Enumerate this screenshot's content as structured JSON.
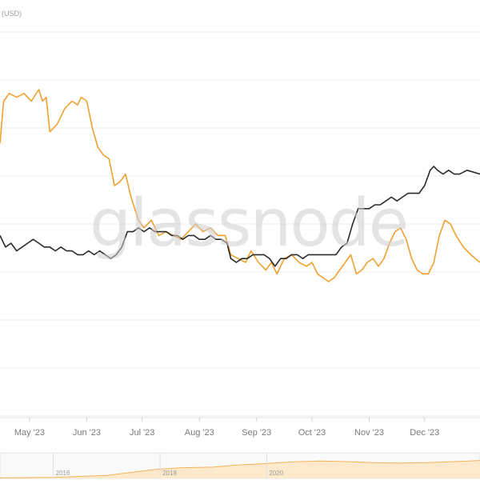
{
  "chart_data": {
    "type": "line",
    "unit_label": "(USD)",
    "watermark": "glassnode",
    "x_tick_labels": [
      "May '23",
      "Jun '23",
      "Jul '23",
      "Aug '23",
      "Sep '23",
      "Oct '23",
      "Nov '23",
      "Dec '23"
    ],
    "navigator_tick_labels": [
      "2016",
      "2018",
      "2020"
    ],
    "grid": true,
    "colors": {
      "series_orange": "#f0a030",
      "series_black": "#2b2b2b",
      "grid": "#ececec",
      "axis_text": "#7a7a7a",
      "navigator_fill": "#fde9cc",
      "navigator_line": "#f4b25a"
    },
    "x_range": [
      "2023-04-15",
      "2023-12-31"
    ],
    "series": [
      {
        "color": "#f0a030",
        "points": [
          [
            "2023-04-15",
            0.71
          ],
          [
            "2023-04-17",
            0.82
          ],
          [
            "2023-04-20",
            0.84
          ],
          [
            "2023-04-24",
            0.83
          ],
          [
            "2023-04-28",
            0.84
          ],
          [
            "2023-05-02",
            0.82
          ],
          [
            "2023-05-06",
            0.85
          ],
          [
            "2023-05-08",
            0.82
          ],
          [
            "2023-05-10",
            0.83
          ],
          [
            "2023-05-12",
            0.74
          ],
          [
            "2023-05-16",
            0.76
          ],
          [
            "2023-05-20",
            0.8
          ],
          [
            "2023-05-24",
            0.82
          ],
          [
            "2023-05-27",
            0.81
          ],
          [
            "2023-05-29",
            0.83
          ],
          [
            "2023-06-01",
            0.82
          ],
          [
            "2023-06-04",
            0.75
          ],
          [
            "2023-06-07",
            0.7
          ],
          [
            "2023-06-10",
            0.68
          ],
          [
            "2023-06-13",
            0.67
          ],
          [
            "2023-06-16",
            0.6
          ],
          [
            "2023-06-19",
            0.61
          ],
          [
            "2023-06-22",
            0.63
          ],
          [
            "2023-06-25",
            0.57
          ],
          [
            "2023-06-29",
            0.51
          ],
          [
            "2023-07-02",
            0.49
          ],
          [
            "2023-07-06",
            0.51
          ],
          [
            "2023-07-10",
            0.47
          ],
          [
            "2023-07-14",
            0.48
          ],
          [
            "2023-07-18",
            0.47
          ],
          [
            "2023-07-22",
            0.46
          ],
          [
            "2023-07-26",
            0.48
          ],
          [
            "2023-07-30",
            0.5
          ],
          [
            "2023-08-03",
            0.48
          ],
          [
            "2023-08-07",
            0.49
          ],
          [
            "2023-08-11",
            0.47
          ],
          [
            "2023-08-15",
            0.47
          ],
          [
            "2023-08-18",
            0.42
          ],
          [
            "2023-08-22",
            0.41
          ],
          [
            "2023-08-26",
            0.4
          ],
          [
            "2023-08-29",
            0.43
          ],
          [
            "2023-09-02",
            0.4
          ],
          [
            "2023-09-06",
            0.38
          ],
          [
            "2023-09-09",
            0.4
          ],
          [
            "2023-09-12",
            0.37
          ],
          [
            "2023-09-16",
            0.41
          ],
          [
            "2023-09-20",
            0.42
          ],
          [
            "2023-09-24",
            0.4
          ],
          [
            "2023-09-28",
            0.39
          ],
          [
            "2023-10-01",
            0.4
          ],
          [
            "2023-10-04",
            0.37
          ],
          [
            "2023-10-07",
            0.36
          ],
          [
            "2023-10-10",
            0.35
          ],
          [
            "2023-10-13",
            0.36
          ],
          [
            "2023-10-16",
            0.38
          ],
          [
            "2023-10-19",
            0.4
          ],
          [
            "2023-10-22",
            0.42
          ],
          [
            "2023-10-25",
            0.37
          ],
          [
            "2023-10-28",
            0.38
          ],
          [
            "2023-10-31",
            0.4
          ],
          [
            "2023-11-03",
            0.41
          ],
          [
            "2023-11-06",
            0.39
          ],
          [
            "2023-11-09",
            0.41
          ],
          [
            "2023-11-12",
            0.45
          ],
          [
            "2023-11-15",
            0.48
          ],
          [
            "2023-11-18",
            0.49
          ],
          [
            "2023-11-21",
            0.46
          ],
          [
            "2023-11-24",
            0.41
          ],
          [
            "2023-11-27",
            0.38
          ],
          [
            "2023-11-30",
            0.37
          ],
          [
            "2023-12-03",
            0.37
          ],
          [
            "2023-12-06",
            0.4
          ],
          [
            "2023-12-09",
            0.47
          ],
          [
            "2023-12-12",
            0.51
          ],
          [
            "2023-12-15",
            0.5
          ],
          [
            "2023-12-18",
            0.47
          ],
          [
            "2023-12-22",
            0.44
          ],
          [
            "2023-12-26",
            0.42
          ],
          [
            "2023-12-31",
            0.4
          ]
        ]
      },
      {
        "color": "#2b2b2b",
        "points": [
          [
            "2023-04-15",
            0.47
          ],
          [
            "2023-04-18",
            0.44
          ],
          [
            "2023-04-21",
            0.45
          ],
          [
            "2023-04-24",
            0.43
          ],
          [
            "2023-04-27",
            0.44
          ],
          [
            "2023-04-30",
            0.45
          ],
          [
            "2023-05-03",
            0.46
          ],
          [
            "2023-05-06",
            0.45
          ],
          [
            "2023-05-09",
            0.44
          ],
          [
            "2023-05-12",
            0.44
          ],
          [
            "2023-05-15",
            0.43
          ],
          [
            "2023-05-18",
            0.44
          ],
          [
            "2023-05-21",
            0.43
          ],
          [
            "2023-05-24",
            0.43
          ],
          [
            "2023-05-27",
            0.42
          ],
          [
            "2023-05-30",
            0.42
          ],
          [
            "2023-06-02",
            0.43
          ],
          [
            "2023-06-05",
            0.42
          ],
          [
            "2023-06-08",
            0.43
          ],
          [
            "2023-06-11",
            0.42
          ],
          [
            "2023-06-14",
            0.41
          ],
          [
            "2023-06-17",
            0.42
          ],
          [
            "2023-06-20",
            0.44
          ],
          [
            "2023-06-23",
            0.48
          ],
          [
            "2023-06-26",
            0.48
          ],
          [
            "2023-06-29",
            0.49
          ],
          [
            "2023-07-02",
            0.48
          ],
          [
            "2023-07-05",
            0.49
          ],
          [
            "2023-07-08",
            0.48
          ],
          [
            "2023-07-11",
            0.48
          ],
          [
            "2023-07-14",
            0.48
          ],
          [
            "2023-07-17",
            0.47
          ],
          [
            "2023-07-20",
            0.47
          ],
          [
            "2023-07-23",
            0.46
          ],
          [
            "2023-07-26",
            0.47
          ],
          [
            "2023-07-29",
            0.47
          ],
          [
            "2023-08-01",
            0.46
          ],
          [
            "2023-08-04",
            0.46
          ],
          [
            "2023-08-07",
            0.47
          ],
          [
            "2023-08-10",
            0.46
          ],
          [
            "2023-08-13",
            0.46
          ],
          [
            "2023-08-16",
            0.45
          ],
          [
            "2023-08-18",
            0.41
          ],
          [
            "2023-08-21",
            0.4
          ],
          [
            "2023-08-24",
            0.41
          ],
          [
            "2023-08-27",
            0.41
          ],
          [
            "2023-08-30",
            0.42
          ],
          [
            "2023-09-02",
            0.42
          ],
          [
            "2023-09-05",
            0.42
          ],
          [
            "2023-09-08",
            0.41
          ],
          [
            "2023-09-11",
            0.39
          ],
          [
            "2023-09-14",
            0.41
          ],
          [
            "2023-09-17",
            0.41
          ],
          [
            "2023-09-20",
            0.42
          ],
          [
            "2023-09-23",
            0.42
          ],
          [
            "2023-09-26",
            0.41
          ],
          [
            "2023-09-29",
            0.42
          ],
          [
            "2023-10-02",
            0.42
          ],
          [
            "2023-10-05",
            0.42
          ],
          [
            "2023-10-08",
            0.42
          ],
          [
            "2023-10-11",
            0.42
          ],
          [
            "2023-10-14",
            0.42
          ],
          [
            "2023-10-17",
            0.44
          ],
          [
            "2023-10-20",
            0.45
          ],
          [
            "2023-10-23",
            0.5
          ],
          [
            "2023-10-26",
            0.54
          ],
          [
            "2023-10-29",
            0.54
          ],
          [
            "2023-11-01",
            0.54
          ],
          [
            "2023-11-04",
            0.55
          ],
          [
            "2023-11-07",
            0.55
          ],
          [
            "2023-11-10",
            0.56
          ],
          [
            "2023-11-13",
            0.57
          ],
          [
            "2023-11-16",
            0.56
          ],
          [
            "2023-11-19",
            0.57
          ],
          [
            "2023-11-22",
            0.58
          ],
          [
            "2023-11-25",
            0.58
          ],
          [
            "2023-11-28",
            0.58
          ],
          [
            "2023-12-01",
            0.6
          ],
          [
            "2023-12-04",
            0.64
          ],
          [
            "2023-12-06",
            0.65
          ],
          [
            "2023-12-08",
            0.64
          ],
          [
            "2023-12-11",
            0.63
          ],
          [
            "2023-12-14",
            0.64
          ],
          [
            "2023-12-17",
            0.63
          ],
          [
            "2023-12-20",
            0.63
          ],
          [
            "2023-12-24",
            0.64
          ],
          [
            "2023-12-31",
            0.63
          ]
        ]
      }
    ],
    "y_range": [
      0,
      1
    ],
    "navigator": {
      "x_range": [
        "2015-01-01",
        "2023-12-31"
      ],
      "points": [
        [
          "2015-01-01",
          0.02
        ],
        [
          "2016-01-01",
          0.04
        ],
        [
          "2017-01-01",
          0.12
        ],
        [
          "2017-12-01",
          0.35
        ],
        [
          "2018-06-01",
          0.42
        ],
        [
          "2019-01-01",
          0.44
        ],
        [
          "2019-06-01",
          0.52
        ],
        [
          "2020-01-01",
          0.58
        ],
        [
          "2020-06-01",
          0.64
        ],
        [
          "2021-01-01",
          0.68
        ],
        [
          "2021-06-01",
          0.66
        ],
        [
          "2022-01-01",
          0.62
        ],
        [
          "2022-06-01",
          0.6
        ],
        [
          "2023-01-01",
          0.62
        ],
        [
          "2023-06-01",
          0.65
        ],
        [
          "2023-12-31",
          0.7
        ]
      ]
    }
  }
}
